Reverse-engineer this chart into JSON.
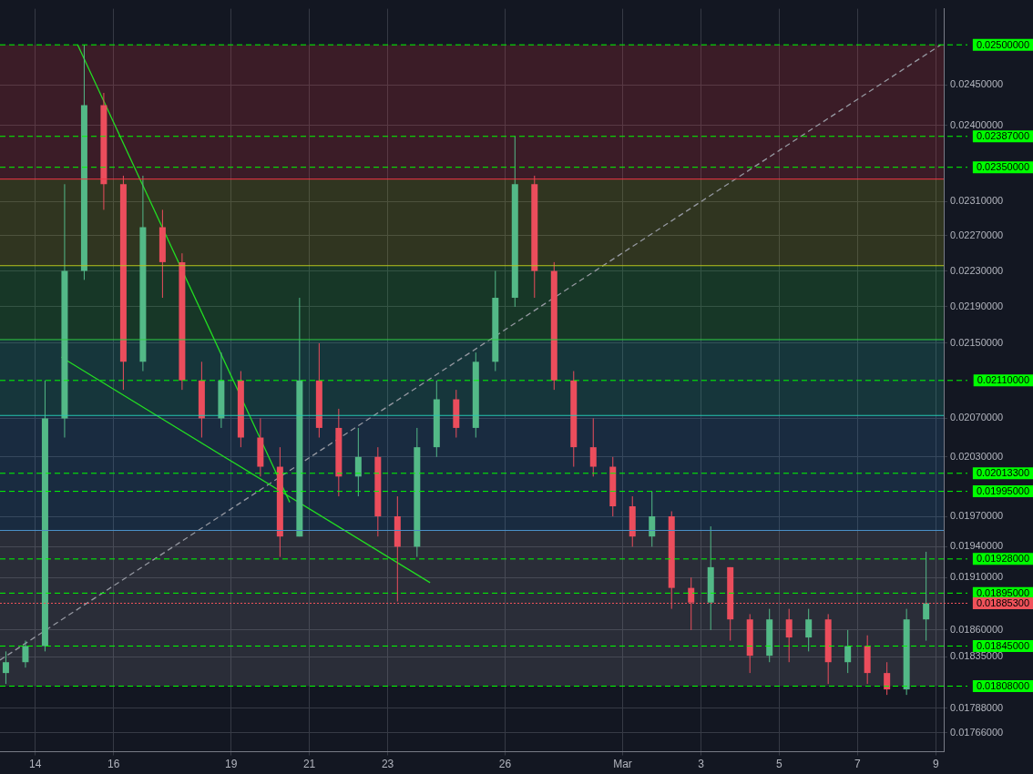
{
  "chart_data": {
    "type": "candlestick",
    "x": [
      "--02-13T06:00",
      "--02-13T18:00",
      "--02-14T06:00",
      "--02-14T18:00",
      "--02-15T06:00",
      "--02-15T18:00",
      "--02-16T06:00",
      "--02-16T18:00",
      "--02-17T06:00",
      "--02-17T18:00",
      "--02-18T06:00",
      "--02-18T18:00",
      "--02-19T06:00",
      "--02-19T18:00",
      "--02-20T06:00",
      "--02-20T18:00",
      "--02-21T06:00",
      "--02-21T18:00",
      "--02-22T06:00",
      "--02-22T18:00",
      "--02-23T06:00",
      "--02-23T18:00",
      "--02-24T06:00",
      "--02-24T18:00",
      "--02-25T06:00",
      "--02-25T18:00",
      "--02-26T06:00",
      "--02-26T18:00",
      "--02-27T06:00",
      "--02-27T18:00",
      "--02-28T06:00",
      "--02-28T18:00",
      "--03-01T06:00",
      "--03-01T18:00",
      "--03-02T06:00",
      "--03-02T18:00",
      "--03-03T06:00",
      "--03-03T18:00",
      "--03-04T06:00",
      "--03-04T18:00",
      "--03-05T06:00",
      "--03-05T18:00",
      "--03-06T06:00",
      "--03-06T18:00",
      "--03-07T06:00",
      "--03-07T18:00",
      "--03-08T06:00",
      "--03-08T18:00"
    ],
    "ohlc": [
      [
        0.0182,
        0.0184,
        0.0181,
        0.0183
      ],
      [
        0.0183,
        0.0185,
        0.01825,
        0.01845
      ],
      [
        0.01845,
        0.0211,
        0.0184,
        0.0207
      ],
      [
        0.0207,
        0.0233,
        0.0205,
        0.0223
      ],
      [
        0.0223,
        0.025,
        0.0222,
        0.02425
      ],
      [
        0.02425,
        0.0244,
        0.023,
        0.0233
      ],
      [
        0.0233,
        0.0234,
        0.021,
        0.0213
      ],
      [
        0.0213,
        0.0234,
        0.0212,
        0.0228
      ],
      [
        0.0228,
        0.023,
        0.022,
        0.0224
      ],
      [
        0.0224,
        0.0225,
        0.021,
        0.0211
      ],
      [
        0.0211,
        0.0213,
        0.0205,
        0.0207
      ],
      [
        0.0207,
        0.0214,
        0.0206,
        0.0211
      ],
      [
        0.0211,
        0.0212,
        0.0204,
        0.0205
      ],
      [
        0.0205,
        0.0207,
        0.0201,
        0.0202
      ],
      [
        0.0202,
        0.0204,
        0.0193,
        0.0195
      ],
      [
        0.0195,
        0.022,
        0.0195,
        0.0211
      ],
      [
        0.0211,
        0.0215,
        0.0205,
        0.0206
      ],
      [
        0.0206,
        0.0208,
        0.0199,
        0.0201
      ],
      [
        0.0201,
        0.0206,
        0.0199,
        0.0203
      ],
      [
        0.0203,
        0.0204,
        0.0195,
        0.0197
      ],
      [
        0.0197,
        0.0199,
        0.01887,
        0.0194
      ],
      [
        0.0194,
        0.0206,
        0.0193,
        0.0204
      ],
      [
        0.0204,
        0.0211,
        0.0203,
        0.0209
      ],
      [
        0.0209,
        0.021,
        0.0205,
        0.0206
      ],
      [
        0.0206,
        0.0214,
        0.0205,
        0.0213
      ],
      [
        0.0213,
        0.0223,
        0.0212,
        0.022
      ],
      [
        0.022,
        0.02387,
        0.0219,
        0.0233
      ],
      [
        0.0233,
        0.0234,
        0.022,
        0.0223
      ],
      [
        0.0223,
        0.0224,
        0.021,
        0.0211
      ],
      [
        0.0211,
        0.0212,
        0.0202,
        0.0204
      ],
      [
        0.0204,
        0.0207,
        0.0201,
        0.0202
      ],
      [
        0.0202,
        0.0203,
        0.0197,
        0.0198
      ],
      [
        0.0198,
        0.0199,
        0.0194,
        0.0195
      ],
      [
        0.0195,
        0.01995,
        0.0194,
        0.0197
      ],
      [
        0.0197,
        0.01975,
        0.0188,
        0.019
      ],
      [
        0.019,
        0.0191,
        0.0186,
        0.01886
      ],
      [
        0.01886,
        0.0196,
        0.0186,
        0.0192
      ],
      [
        0.0192,
        0.0192,
        0.0185,
        0.0187
      ],
      [
        0.0187,
        0.01875,
        0.0182,
        0.01836
      ],
      [
        0.01836,
        0.0188,
        0.0183,
        0.0187
      ],
      [
        0.0187,
        0.0188,
        0.0183,
        0.01853
      ],
      [
        0.01853,
        0.0188,
        0.0184,
        0.0187
      ],
      [
        0.0187,
        0.01875,
        0.0181,
        0.0183
      ],
      [
        0.0183,
        0.0186,
        0.0182,
        0.01845
      ],
      [
        0.01845,
        0.01855,
        0.0181,
        0.0182
      ],
      [
        0.0182,
        0.0183,
        0.018,
        0.01805
      ],
      [
        0.01805,
        0.0188,
        0.018,
        0.0187
      ],
      [
        0.0187,
        0.01935,
        0.0185,
        0.018853
      ]
    ],
    "series": [
      {
        "type": "line",
        "x": [
          "--02-15T02:00",
          "--02-20T12:00"
        ],
        "values": [
          0.025,
          0.01984
        ],
        "color": "#22dd22"
      },
      {
        "type": "line",
        "x": [
          "--02-14T16:00",
          "--02-24T02:00"
        ],
        "values": [
          0.02135,
          0.01905
        ],
        "color": "#22dd22"
      },
      {
        "type": "line",
        "x": [
          "--02-13T02:24",
          "--03-09T03:00"
        ],
        "values": [
          0.01832,
          0.025
        ],
        "color": "#9598a1",
        "line_style": "dashed"
      }
    ],
    "xlim": [
      "--02-13T02:24",
      "--03-09T04:48"
    ],
    "xticks": [
      {
        "value": "--02-14",
        "label": "14"
      },
      {
        "value": "--02-16",
        "label": "16"
      },
      {
        "value": "--02-19",
        "label": "19"
      },
      {
        "value": "--02-21",
        "label": "21"
      },
      {
        "value": "--02-23",
        "label": "23"
      },
      {
        "value": "--02-26",
        "label": "26"
      },
      {
        "value": "--03-01",
        "label": "Mar"
      },
      {
        "value": "--03-03",
        "label": "3"
      },
      {
        "value": "--03-05",
        "label": "5"
      },
      {
        "value": "--03-07",
        "label": "7"
      },
      {
        "value": "--03-09",
        "label": "9"
      }
    ],
    "ylim": [
      0.01749,
      0.02546
    ],
    "yticks": [
      {
        "value": 0.0245,
        "label": "0.02450000"
      },
      {
        "value": 0.024,
        "label": "0.02400000"
      },
      {
        "value": 0.0231,
        "label": "0.02310000"
      },
      {
        "value": 0.0227,
        "label": "0.02270000"
      },
      {
        "value": 0.0223,
        "label": "0.02230000"
      },
      {
        "value": 0.0219,
        "label": "0.02190000"
      },
      {
        "value": 0.0215,
        "label": "0.02150000"
      },
      {
        "value": 0.0207,
        "label": "0.02070000"
      },
      {
        "value": 0.0203,
        "label": "0.02030000"
      },
      {
        "value": 0.0197,
        "label": "0.01970000"
      },
      {
        "value": 0.0194,
        "label": "0.01940000"
      },
      {
        "value": 0.0191,
        "label": "0.01910000"
      },
      {
        "value": 0.0186,
        "label": "0.01860000"
      },
      {
        "value": 0.01835,
        "label": "0.01835000"
      },
      {
        "value": 0.01788,
        "label": "0.01788000"
      },
      {
        "value": 0.01766,
        "label": "0.01766000"
      }
    ],
    "log": "y",
    "grid": true,
    "legend": false,
    "bands": [
      {
        "axis": "y",
        "from": 0.02336,
        "to": 0.025,
        "color": "#f23645"
      },
      {
        "axis": "y",
        "from": 0.02236,
        "to": 0.02336,
        "color": "#b8c41c"
      },
      {
        "axis": "y",
        "from": 0.02154,
        "to": 0.02236,
        "color": "#2ecc40"
      },
      {
        "axis": "y",
        "from": 0.02073,
        "to": 0.02154,
        "color": "#26c6b0"
      },
      {
        "axis": "y",
        "from": 0.01956,
        "to": 0.02073,
        "color": "#3a8ccf"
      },
      {
        "axis": "y",
        "from": 0.01808,
        "to": 0.01956,
        "color": "#9598a1"
      }
    ],
    "ref_lines": [
      {
        "axis": "y",
        "value": 0.02336,
        "color": "#f23645",
        "line_style": "solid"
      },
      {
        "axis": "y",
        "value": 0.02236,
        "color": "#b8c41c",
        "line_style": "solid"
      },
      {
        "axis": "y",
        "value": 0.02154,
        "color": "#2ecc40",
        "line_style": "solid"
      },
      {
        "axis": "y",
        "value": 0.02073,
        "color": "#26c6b0",
        "line_style": "solid"
      },
      {
        "axis": "y",
        "value": 0.01956,
        "color": "#4a90c8",
        "line_style": "solid"
      },
      {
        "axis": "y",
        "value": 0.025,
        "label": "0.02500000",
        "color": "#00ff00",
        "line_style": "dashed"
      },
      {
        "axis": "y",
        "value": 0.02387,
        "label": "0.02387000",
        "color": "#00ff00",
        "line_style": "dashed"
      },
      {
        "axis": "y",
        "value": 0.0235,
        "label": "0.02350000",
        "color": "#00ff00",
        "line_style": "dashed"
      },
      {
        "axis": "y",
        "value": 0.0211,
        "label": "0.02110000",
        "color": "#00ff00",
        "line_style": "dashed"
      },
      {
        "axis": "y",
        "value": 0.020133,
        "label": "0.02013300",
        "color": "#00ff00",
        "line_style": "dashed"
      },
      {
        "axis": "y",
        "value": 0.01995,
        "label": "0.01995000",
        "color": "#00ff00",
        "line_style": "dashed"
      },
      {
        "axis": "y",
        "value": 0.01928,
        "label": "0.01928000",
        "color": "#00ff00",
        "line_style": "dashed"
      },
      {
        "axis": "y",
        "value": 0.01895,
        "label": "0.01895000",
        "color": "#00ff00",
        "line_style": "dashed"
      },
      {
        "axis": "y",
        "value": 0.018853,
        "label": "0.01885300",
        "color": "#f0525a",
        "line_style": "dotted"
      },
      {
        "axis": "y",
        "value": 0.01845,
        "label": "0.01845000",
        "color": "#00ff00",
        "line_style": "dashed"
      },
      {
        "axis": "y",
        "value": 0.01808,
        "label": "0.01808000",
        "color": "#00ff00",
        "line_style": "dashed"
      }
    ]
  }
}
